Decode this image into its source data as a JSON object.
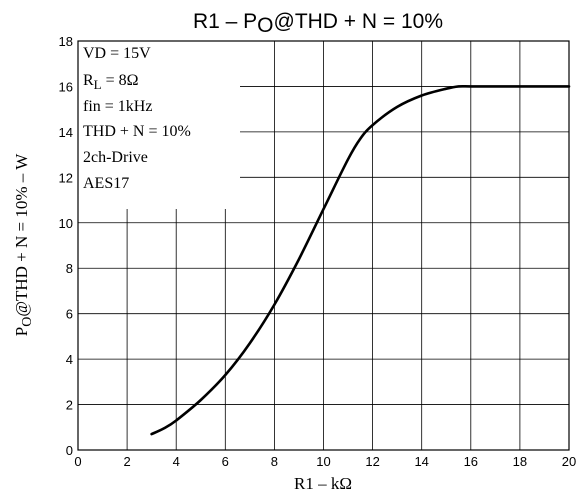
{
  "chart_data": {
    "type": "line",
    "title": {
      "prefix": "R1  –  P",
      "sub": "O",
      "suffix": "@THD + N = 10%"
    },
    "xlabel": "R1  –  kΩ",
    "ylabel": {
      "prefix": "P",
      "sub": "O",
      "suffix": "@THD + N = 10%  –  W"
    },
    "xlim": [
      0,
      20
    ],
    "ylim": [
      0,
      18
    ],
    "x_ticks": [
      "0",
      "2",
      "4",
      "6",
      "8",
      "10",
      "12",
      "14",
      "16",
      "18",
      "20"
    ],
    "y_ticks": [
      "0",
      "2",
      "4",
      "6",
      "8",
      "10",
      "12",
      "14",
      "16",
      "18"
    ],
    "grid": true,
    "annotations": {
      "vd": "VD = 15V",
      "rl_prefix": "R",
      "rl_sub": "L",
      "rl_suffix": " = 8Ω",
      "fin": "fin = 1kHz",
      "thd": "THD + N = 10%",
      "drive": "2ch-Drive",
      "aes": "AES17"
    },
    "series": [
      {
        "x": [
          3.0,
          3.5,
          4.0,
          5.0,
          6.0,
          7.0,
          8.0,
          9.0,
          10.0,
          11.0,
          11.5,
          12.0,
          13.0,
          14.0,
          15.0,
          15.5,
          16.0,
          17.0,
          18.0,
          19.0,
          20.0
        ],
        "y": [
          0.7,
          0.95,
          1.3,
          2.2,
          3.3,
          4.7,
          6.4,
          8.4,
          10.6,
          12.8,
          13.7,
          14.3,
          15.1,
          15.6,
          15.9,
          16.0,
          16.0,
          16.0,
          16.0,
          16.0,
          16.0
        ],
        "color": "#000000"
      }
    ]
  }
}
